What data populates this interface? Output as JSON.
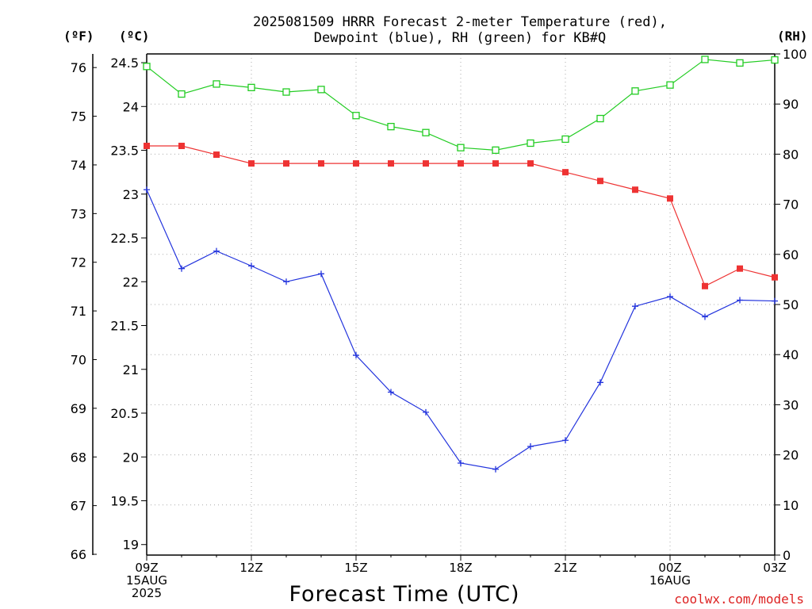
{
  "title_line1": "2025081509 HRRR Forecast 2-meter Temperature (red),",
  "title_line2": "Dewpoint (blue), RH (green) for KB#Q",
  "unit_f": "(ºF)",
  "unit_c": "(ºC)",
  "unit_rh": "(RH)",
  "xlabel": "Forecast Time (UTC)",
  "credit": "coolwx.com/models",
  "colors": {
    "temperature": "#ee3333",
    "dewpoint": "#2233dd",
    "rh": "#22cc22",
    "grid": "#999999"
  },
  "chart_data": {
    "type": "line",
    "title": "2025081509 HRRR Forecast 2-meter Temperature (red), Dewpoint (blue), RH (green) for KB#Q",
    "xlabel": "Forecast Time (UTC)",
    "x": [
      "09Z",
      "10Z",
      "11Z",
      "12Z",
      "13Z",
      "14Z",
      "15Z",
      "16Z",
      "17Z",
      "18Z",
      "19Z",
      "20Z",
      "21Z",
      "22Z",
      "23Z",
      "00Z",
      "01Z",
      "02Z",
      "03Z"
    ],
    "x_tick_labels": [
      {
        "hour": 0,
        "lines": [
          "09Z",
          "15AUG",
          "2025"
        ]
      },
      {
        "hour": 3,
        "lines": [
          "12Z"
        ]
      },
      {
        "hour": 6,
        "lines": [
          "15Z"
        ]
      },
      {
        "hour": 9,
        "lines": [
          "18Z"
        ]
      },
      {
        "hour": 12,
        "lines": [
          "21Z"
        ]
      },
      {
        "hour": 15,
        "lines": [
          "00Z",
          "16AUG"
        ]
      },
      {
        "hour": 18,
        "lines": [
          "03Z"
        ]
      }
    ],
    "y_left_c": {
      "label": "(ºC)",
      "ticks": [
        19,
        19.5,
        20,
        20.5,
        21,
        21.5,
        22,
        22.5,
        23,
        23.5,
        24,
        24.5
      ],
      "range": [
        18.88,
        24.6
      ]
    },
    "y_left_f": {
      "label": "(ºF)",
      "ticks": [
        66,
        67,
        68,
        69,
        70,
        71,
        72,
        73,
        74,
        75,
        76
      ]
    },
    "y_right_rh": {
      "label": "(RH)",
      "ticks": [
        0,
        10,
        20,
        30,
        40,
        50,
        60,
        70,
        80,
        90,
        100
      ],
      "range": [
        0,
        100
      ]
    },
    "grid": true,
    "series": [
      {
        "name": "Temperature",
        "axis": "c",
        "color": "#ee3333",
        "marker": "filled-square",
        "values": [
          23.55,
          23.55,
          23.45,
          23.35,
          23.35,
          23.35,
          23.35,
          23.35,
          23.35,
          23.35,
          23.35,
          23.35,
          23.25,
          23.15,
          23.05,
          22.95,
          21.95,
          22.15,
          22.05
        ]
      },
      {
        "name": "Dewpoint",
        "axis": "c",
        "color": "#2233dd",
        "marker": "plus",
        "values": [
          23.05,
          22.15,
          22.35,
          22.18,
          22.0,
          22.09,
          21.16,
          20.74,
          20.51,
          19.93,
          19.86,
          20.12,
          20.19,
          20.85,
          21.72,
          21.83,
          21.6,
          21.79,
          21.78
        ]
      },
      {
        "name": "RH",
        "axis": "rh",
        "color": "#22cc22",
        "marker": "hollow-square",
        "values": [
          97.5,
          92,
          94,
          93.3,
          92.4,
          92.9,
          87.7,
          85.5,
          84.3,
          81.3,
          80.8,
          82.2,
          83,
          87.1,
          92.6,
          93.8,
          98.9,
          98.2,
          98.8
        ]
      }
    ]
  }
}
